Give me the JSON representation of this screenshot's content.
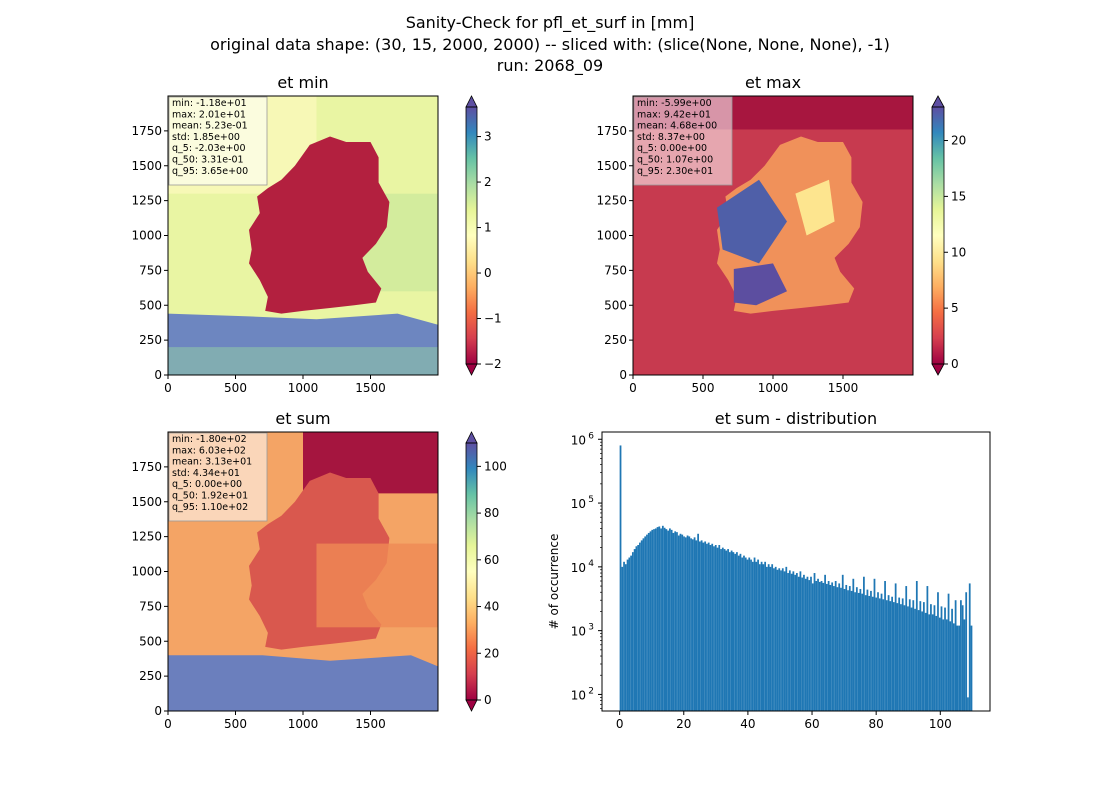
{
  "figure": {
    "suptitle_lines": [
      "Sanity-Check for pfl_et_surf in [mm]",
      "original data shape: (30, 15, 2000, 2000) -- sliced with: (slice(None, None, None), -1)",
      "run: 2068_09"
    ]
  },
  "chart_data": [
    {
      "type": "heatmap",
      "title": "et min",
      "xlim": [
        0,
        2000
      ],
      "ylim": [
        0,
        2000
      ],
      "xticks": [
        0,
        500,
        1000,
        1500
      ],
      "yticks": [
        0,
        250,
        500,
        750,
        1000,
        1250,
        1500,
        1750
      ],
      "colormap": "Spectral",
      "colorbar": {
        "range": [
          -2.0,
          3.65
        ],
        "ticks": [
          -2,
          -1,
          0,
          1,
          2,
          3
        ],
        "extend": "both"
      },
      "stats": [
        "min: -1.18e+01",
        "max: 2.01e+01",
        "mean: 5.23e-01",
        "std: 1.85e+00",
        "q_5: -2.03e+00",
        "q_50: 3.31e-01",
        "q_95: 3.65e+00"
      ]
    },
    {
      "type": "heatmap",
      "title": "et max",
      "xlim": [
        0,
        2000
      ],
      "ylim": [
        0,
        2000
      ],
      "xticks": [
        0,
        500,
        1000,
        1500
      ],
      "yticks": [
        0,
        250,
        500,
        750,
        1000,
        1250,
        1500,
        1750
      ],
      "colormap": "Spectral",
      "colorbar": {
        "range": [
          0.0,
          23.0
        ],
        "ticks": [
          0,
          5,
          10,
          15,
          20
        ],
        "extend": "both"
      },
      "stats": [
        "min: -5.99e+00",
        "max: 9.42e+01",
        "mean: 4.68e+00",
        "std: 8.37e+00",
        "q_5: 0.00e+00",
        "q_50: 1.07e+00",
        "q_95: 2.30e+01"
      ]
    },
    {
      "type": "heatmap",
      "title": "et sum",
      "xlim": [
        0,
        2000
      ],
      "ylim": [
        0,
        2000
      ],
      "xticks": [
        0,
        500,
        1000,
        1500
      ],
      "yticks": [
        0,
        250,
        500,
        750,
        1000,
        1250,
        1500,
        1750
      ],
      "colormap": "Spectral",
      "colorbar": {
        "range": [
          0.0,
          110.0
        ],
        "ticks": [
          0,
          20,
          40,
          60,
          80,
          100
        ],
        "extend": "both"
      },
      "stats": [
        "min: -1.80e+02",
        "max: 6.03e+02",
        "mean: 3.13e+01",
        "std: 4.34e+01",
        "q_5: 0.00e+00",
        "q_50: 1.92e+01",
        "q_95: 1.10e+02"
      ]
    },
    {
      "type": "bar",
      "title": "et sum - distribution",
      "ylabel": "# of occurrence",
      "yscale": "log",
      "xlim": [
        -5.5,
        115.5
      ],
      "ylim": [
        55,
        1300000
      ],
      "xticks": [
        0,
        20,
        40,
        60,
        80,
        100
      ],
      "yticks": [
        100,
        1000,
        10000,
        100000,
        1000000
      ],
      "ytick_labels": [
        "10",
        "10",
        "10",
        "10",
        "10"
      ],
      "ytick_exponents": [
        "2",
        "3",
        "4",
        "5",
        "6"
      ],
      "color": "#1f77b4",
      "bin_width": 0.55,
      "x": [
        0,
        0.55,
        1.1,
        1.65,
        2.2,
        2.75,
        3.3,
        3.85,
        4.4,
        4.95,
        5.5,
        6.05,
        6.6,
        7.15,
        7.7,
        8.25,
        8.8,
        9.35,
        9.9,
        10.45,
        11,
        11.55,
        12.1,
        12.65,
        13.2,
        13.75,
        14.3,
        14.85,
        15.4,
        15.95,
        16.5,
        17.05,
        17.6,
        18.15,
        18.7,
        19.25,
        19.8,
        20.35,
        20.9,
        21.45,
        22,
        22.55,
        23.1,
        23.65,
        24.2,
        24.75,
        25.3,
        25.85,
        26.4,
        26.95,
        27.5,
        28.05,
        28.6,
        29.15,
        29.7,
        30.25,
        30.8,
        31.35,
        31.9,
        32.45,
        33,
        33.55,
        34.1,
        34.65,
        35.2,
        35.75,
        36.3,
        36.85,
        37.4,
        37.95,
        38.5,
        39.05,
        39.6,
        40.15,
        40.7,
        41.25,
        41.8,
        42.35,
        42.9,
        43.45,
        44,
        44.55,
        45.1,
        45.65,
        46.2,
        46.75,
        47.3,
        47.85,
        48.4,
        48.95,
        49.5,
        50.05,
        50.6,
        51.15,
        51.7,
        52.25,
        52.8,
        53.35,
        53.9,
        54.45,
        55,
        55.55,
        56.1,
        56.65,
        57.2,
        57.75,
        58.3,
        58.85,
        59.4,
        59.95,
        60.5,
        61.05,
        61.6,
        62.15,
        62.7,
        63.25,
        63.8,
        64.35,
        64.9,
        65.45,
        66,
        66.55,
        67.1,
        67.65,
        68.2,
        68.75,
        69.3,
        69.85,
        70.4,
        70.95,
        71.5,
        72.05,
        72.6,
        73.15,
        73.7,
        74.25,
        74.8,
        75.35,
        75.9,
        76.45,
        77,
        77.55,
        78.1,
        78.65,
        79.2,
        79.75,
        80.3,
        80.85,
        81.4,
        81.95,
        82.5,
        83.05,
        83.6,
        84.15,
        84.7,
        85.25,
        85.8,
        86.35,
        86.9,
        87.45,
        88,
        88.55,
        89.1,
        89.65,
        90.2,
        90.75,
        91.3,
        91.85,
        92.4,
        92.95,
        93.5,
        94.05,
        94.6,
        95.15,
        95.7,
        96.25,
        96.8,
        97.35,
        97.9,
        98.45,
        99,
        99.55,
        100.1,
        100.65,
        101.2,
        101.75,
        102.3,
        102.85,
        103.4,
        103.95,
        104.5,
        105.05,
        105.6,
        106.15,
        106.7,
        107.25,
        107.8,
        108.35,
        108.9,
        109.45
      ],
      "values": [
        800000,
        10000,
        12000,
        11000,
        13000,
        14000,
        15000,
        17000,
        19000,
        21000,
        22000,
        24000,
        26000,
        28000,
        30000,
        32000,
        34000,
        36000,
        38000,
        39000,
        40000,
        42000,
        43000,
        40000,
        44000,
        41000,
        39000,
        37000,
        40000,
        38000,
        34000,
        36000,
        35000,
        31000,
        33000,
        32000,
        30000,
        29000,
        31000,
        30000,
        28000,
        27000,
        29000,
        26000,
        33000,
        25000,
        26000,
        24000,
        25000,
        23000,
        24000,
        22000,
        23000,
        21000,
        22000,
        20000,
        22000,
        19000,
        20000,
        19000,
        18000,
        19000,
        17000,
        18000,
        17000,
        16000,
        17000,
        15000,
        16000,
        14000,
        15000,
        14000,
        13000,
        14000,
        13000,
        12000,
        14000,
        12000,
        13000,
        11000,
        12000,
        11000,
        12000,
        10000,
        11000,
        10000,
        11000,
        9500,
        10000,
        9000,
        9500,
        8800,
        9500,
        8500,
        10000,
        8000,
        8800,
        7800,
        8500,
        7500,
        8000,
        7000,
        8500,
        6800,
        7500,
        6500,
        7000,
        6200,
        7000,
        5500,
        8000,
        6000,
        6500,
        5800,
        6000,
        5600,
        7500,
        5400,
        6000,
        5200,
        5700,
        5000,
        6000,
        4800,
        5500,
        4700,
        7500,
        4500,
        5200,
        4300,
        5000,
        4200,
        6500,
        4000,
        4800,
        3900,
        4500,
        3800,
        7000,
        3600,
        4400,
        3500,
        4200,
        3400,
        6500,
        3300,
        4000,
        3200,
        3800,
        3100,
        6000,
        3000,
        3600,
        2900,
        3400,
        2800,
        5500,
        2700,
        3300,
        2600,
        3200,
        2500,
        5000,
        2400,
        3100,
        2300,
        3000,
        2200,
        6000,
        2100,
        2900,
        2000,
        2800,
        1900,
        5000,
        1800,
        2600,
        1800,
        2500,
        1700,
        4000,
        1600,
        2400,
        1500,
        2300,
        1500,
        3800,
        1400,
        2200,
        1300,
        3000,
        1200,
        1200,
        3000,
        2500,
        1500,
        4000,
        90,
        5500,
        1200
      ]
    }
  ]
}
